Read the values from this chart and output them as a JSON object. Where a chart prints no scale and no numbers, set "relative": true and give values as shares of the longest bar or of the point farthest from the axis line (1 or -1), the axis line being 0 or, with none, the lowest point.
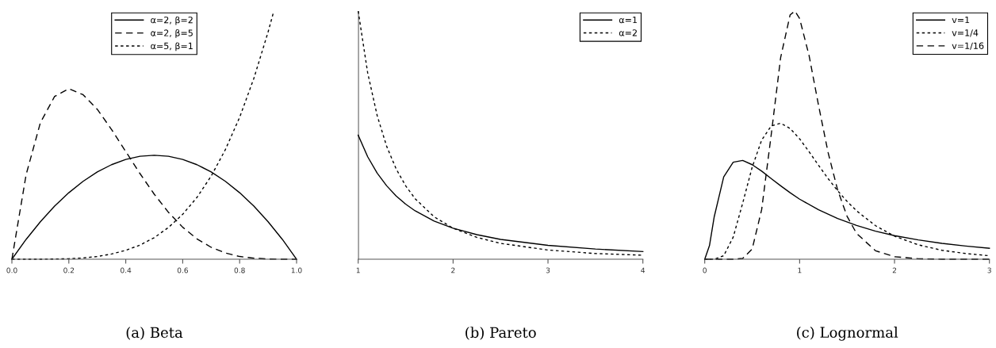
{
  "chart_data": [
    {
      "type": "line",
      "title": "(a) Beta",
      "relative": true,
      "legend": "top",
      "xlim": [
        0,
        1
      ],
      "xticks": [
        {
          "value": 0,
          "label": "0.0"
        },
        0.2,
        0.4,
        0.6,
        0.8,
        {
          "value": 1,
          "label": "1.0"
        }
      ],
      "x": [
        0,
        0.05,
        0.1,
        0.15,
        0.2,
        0.25,
        0.3,
        0.35,
        0.4,
        0.45,
        0.5,
        0.55,
        0.6,
        0.65,
        0.7,
        0.75,
        0.8,
        0.85,
        0.9,
        0.95,
        1
      ],
      "series": [
        {
          "name": "α=2, β=2",
          "color": "#000000",
          "line_style": "solid",
          "values": [
            0,
            0.08,
            0.151,
            0.214,
            0.268,
            0.314,
            0.352,
            0.381,
            0.402,
            0.415,
            0.419,
            0.415,
            0.402,
            0.381,
            0.352,
            0.314,
            0.268,
            0.214,
            0.151,
            0.08,
            0
          ]
        },
        {
          "name": "α=2, β=5",
          "color": "#000000",
          "line_style": "dashed",
          "values": [
            0,
            0.341,
            0.55,
            0.656,
            0.687,
            0.663,
            0.604,
            0.523,
            0.434,
            0.345,
            0.262,
            0.189,
            0.129,
            0.082,
            0.048,
            0.025,
            0.011,
            0.004,
            0.001,
            0,
            0
          ]
        },
        {
          "name": "α=5, β=1",
          "color": "#000000",
          "line_style": "dotted",
          "x": [
            0,
            0.05,
            0.1,
            0.15,
            0.2,
            0.25,
            0.3,
            0.35,
            0.4,
            0.45,
            0.5,
            0.55,
            0.6,
            0.65,
            0.7,
            0.75,
            0.8,
            0.85,
            0.9,
            0.92
          ],
          "values": [
            0,
            0,
            0,
            0.001,
            0.002,
            0.005,
            0.011,
            0.021,
            0.036,
            0.057,
            0.087,
            0.128,
            0.181,
            0.249,
            0.335,
            0.442,
            0.572,
            0.729,
            0.916,
            1
          ]
        }
      ]
    },
    {
      "type": "line",
      "title": "(b) Pareto",
      "relative": true,
      "legend": "top right",
      "xlim": [
        1,
        4
      ],
      "xticks": [
        1,
        2,
        3,
        4
      ],
      "ref_lines": [
        {
          "axis": "x",
          "value": 1,
          "color": "#000000"
        }
      ],
      "x": [
        1,
        1.1,
        1.2,
        1.3,
        1.4,
        1.5,
        1.6,
        1.8,
        2,
        2.25,
        2.5,
        3,
        3.5,
        4
      ],
      "series": [
        {
          "name": "α=1",
          "color": "#000000",
          "line_style": "solid",
          "values": [
            0.5,
            0.413,
            0.347,
            0.296,
            0.255,
            0.222,
            0.195,
            0.154,
            0.125,
            0.099,
            0.08,
            0.056,
            0.041,
            0.031
          ]
        },
        {
          "name": "α=2",
          "color": "#000000",
          "line_style": "dotted",
          "values": [
            1,
            0.751,
            0.579,
            0.455,
            0.364,
            0.296,
            0.244,
            0.171,
            0.125,
            0.088,
            0.064,
            0.037,
            0.023,
            0.016
          ]
        }
      ]
    },
    {
      "type": "line",
      "title": "(c) Lognormal",
      "relative": true,
      "legend": "top right",
      "xlim": [
        0,
        3
      ],
      "xticks": [
        0,
        1,
        2,
        3
      ],
      "x": [
        0,
        0.05,
        0.1,
        0.2,
        0.3,
        0.4,
        0.5,
        0.6,
        0.7,
        0.8,
        0.9,
        1,
        1.2,
        1.4,
        1.6,
        1.8,
        2,
        2.25,
        2.5,
        2.75,
        3
      ],
      "series": [
        {
          "name": "v=1",
          "color": "#000000",
          "line_style": "solid",
          "values": [
            0,
            0.055,
            0.171,
            0.332,
            0.391,
            0.398,
            0.381,
            0.355,
            0.325,
            0.296,
            0.268,
            0.242,
            0.199,
            0.164,
            0.136,
            0.113,
            0.095,
            0.078,
            0.064,
            0.053,
            0.044
          ]
        },
        {
          "name": "v=1/4",
          "color": "#000000",
          "line_style": "dotted",
          "x": [
            0,
            0.1,
            0.2,
            0.3,
            0.4,
            0.5,
            0.6,
            0.7,
            0.8,
            0.9,
            1,
            1.1,
            1.2,
            1.3,
            1.4,
            1.5,
            1.6,
            1.8,
            2,
            2.25,
            2.5,
            2.75,
            3
          ],
          "values": [
            0,
            0,
            0.014,
            0.089,
            0.226,
            0.371,
            0.48,
            0.537,
            0.548,
            0.527,
            0.485,
            0.433,
            0.378,
            0.325,
            0.276,
            0.233,
            0.195,
            0.135,
            0.093,
            0.058,
            0.036,
            0.023,
            0.014
          ]
        },
        {
          "name": "v=1/16",
          "color": "#000000",
          "line_style": "dashed",
          "x": [
            0,
            0.3,
            0.4,
            0.5,
            0.6,
            0.7,
            0.8,
            0.9,
            0.95,
            1,
            1.1,
            1.2,
            1.3,
            1.4,
            1.5,
            1.6,
            1.8,
            2,
            2.25,
            2.5,
            3
          ],
          "values": [
            0,
            0,
            0.003,
            0.041,
            0.2,
            0.5,
            0.813,
            0.985,
            1,
            0.97,
            0.82,
            0.619,
            0.43,
            0.28,
            0.173,
            0.104,
            0.034,
            0.01,
            0.002,
            0,
            0
          ]
        }
      ]
    }
  ]
}
